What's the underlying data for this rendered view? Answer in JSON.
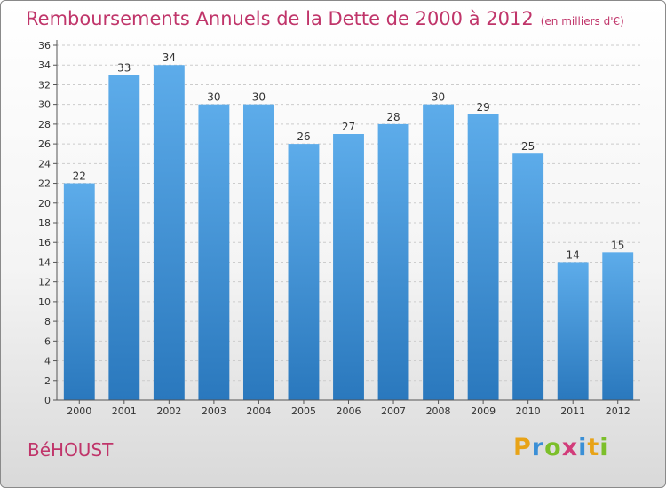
{
  "header": {
    "title": "Remboursements Annuels de la Dette de 2000 à 2012",
    "subtitle": "(en milliers d'€)"
  },
  "place_name": "BéHOUST",
  "logo": {
    "text": "Proxiti",
    "letters": [
      "P",
      "r",
      "o",
      "x",
      "i",
      "t",
      "i"
    ]
  },
  "colors": {
    "bar_top": "#5dacea",
    "bar_bottom": "#2a78bd",
    "title": "#c0356a",
    "grid": "#cccccc"
  },
  "chart_data": {
    "type": "bar",
    "title": "Remboursements Annuels de la Dette de 2000 à 2012",
    "subtitle": "(en milliers d'€)",
    "categories": [
      "2000",
      "2001",
      "2002",
      "2003",
      "2004",
      "2005",
      "2006",
      "2007",
      "2008",
      "2009",
      "2010",
      "2011",
      "2012"
    ],
    "values": [
      22,
      33,
      34,
      30,
      30,
      26,
      27,
      28,
      30,
      29,
      25,
      14,
      15
    ],
    "ylim": [
      0,
      36
    ],
    "yticks": [
      0,
      2,
      4,
      6,
      8,
      10,
      12,
      14,
      16,
      18,
      20,
      22,
      24,
      26,
      28,
      30,
      32,
      34,
      36
    ],
    "grid": true,
    "legend": "none"
  }
}
